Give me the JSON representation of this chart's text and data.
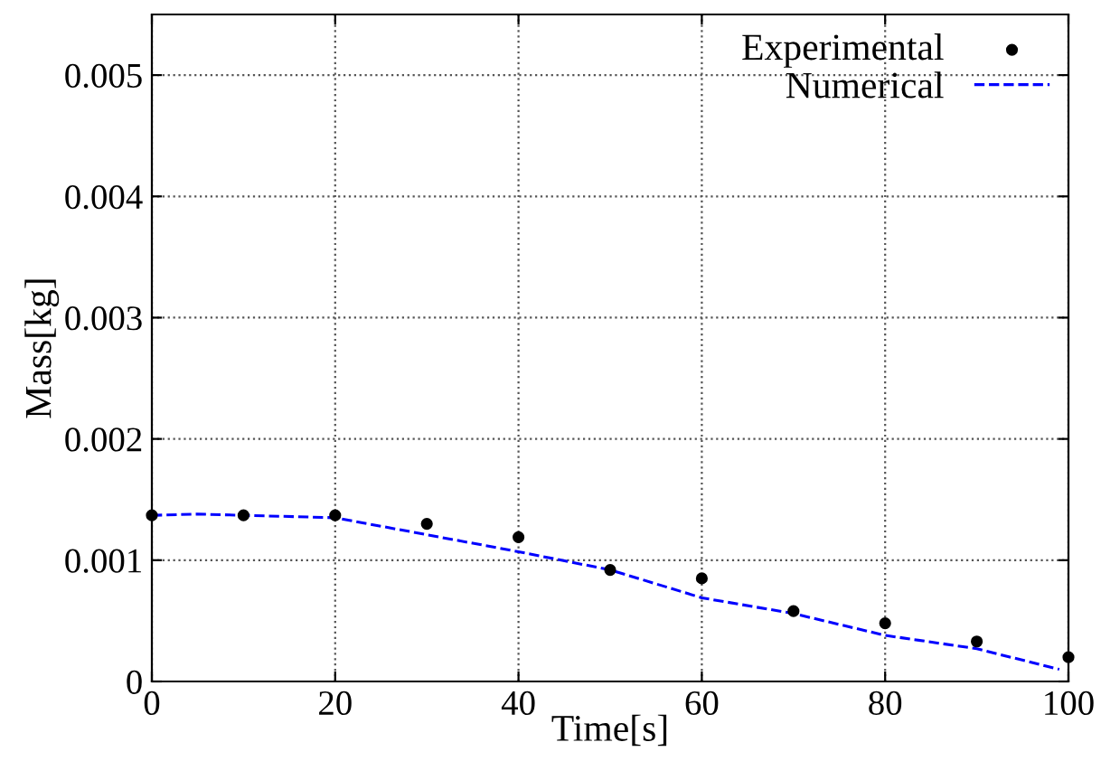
{
  "chart_data": {
    "type": "scatter",
    "xlabel": "Time[s]",
    "ylabel": "Mass[kg]",
    "xlim": [
      0,
      100
    ],
    "xticks": [
      0,
      20,
      40,
      60,
      80,
      100
    ],
    "ylim": [
      0,
      0.0055
    ],
    "yticks": [
      0,
      0.001,
      0.002,
      0.003,
      0.004,
      0.005
    ],
    "grid": true,
    "legend": "top right",
    "series": [
      {
        "name": "Experimental",
        "marker": "circle",
        "color": "#000000",
        "x": [
          0,
          10,
          20,
          30,
          40,
          50,
          60,
          70,
          80,
          90,
          100
        ],
        "values": [
          0.00137,
          0.00137,
          0.00137,
          0.0013,
          0.00119,
          0.00092,
          0.00085,
          0.00058,
          0.00048,
          0.00033,
          0.0002
        ]
      },
      {
        "name": "Numerical",
        "type": "line",
        "line_style": "dashed",
        "color": "#0000ff",
        "x": [
          0,
          5,
          20,
          40,
          50,
          60,
          70,
          80,
          90,
          99
        ],
        "values": [
          0.00137,
          0.00138,
          0.00135,
          0.00107,
          0.00092,
          0.00069,
          0.00056,
          0.00038,
          0.00027,
          0.0001
        ]
      }
    ]
  }
}
